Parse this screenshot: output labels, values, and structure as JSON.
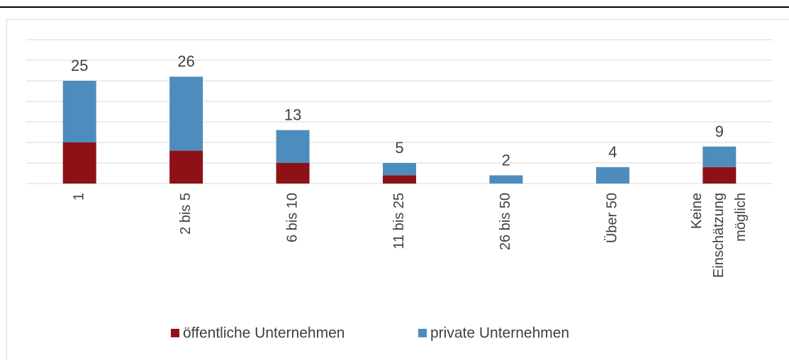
{
  "chart_data": {
    "type": "stacked_bar",
    "categories": [
      "1",
      "2 bis 5",
      "6 bis 10",
      "11 bis 25",
      "26 bis 50",
      "Über 50",
      "Keine Einschätzung möglich"
    ],
    "series": [
      {
        "name": "öffentliche Unternehmen",
        "color": "#8e1116",
        "values": [
          10,
          8,
          5,
          2,
          0,
          0,
          4
        ]
      },
      {
        "name": "private Unternehmen",
        "color": "#4d8dbd",
        "values": [
          15,
          18,
          8,
          3,
          2,
          4,
          5
        ]
      }
    ],
    "totals": [
      25,
      26,
      13,
      5,
      2,
      4,
      9
    ],
    "ylim": [
      0,
      35
    ],
    "yticks": [
      0,
      5,
      10,
      15,
      20,
      25,
      30,
      35
    ],
    "grid": true
  }
}
